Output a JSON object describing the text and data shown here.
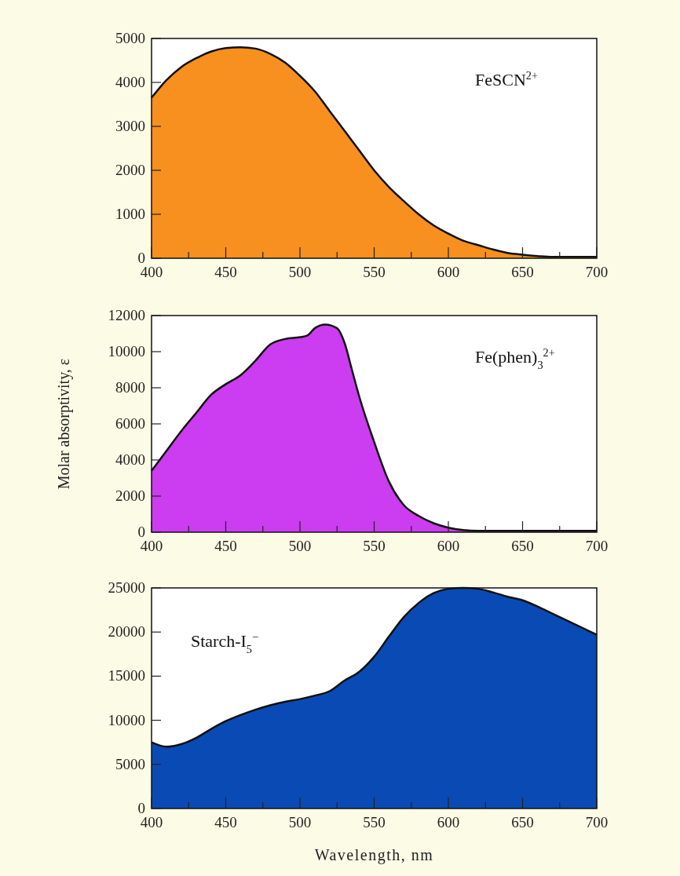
{
  "chart_data": [
    {
      "type": "area",
      "x": [
        400,
        410,
        420,
        430,
        440,
        450,
        460,
        470,
        480,
        490,
        500,
        510,
        520,
        530,
        540,
        550,
        560,
        570,
        580,
        590,
        600,
        610,
        620,
        630,
        640,
        650,
        660,
        670,
        680,
        690,
        700
      ],
      "series": [
        {
          "name": "FeSCN$^{2+}$",
          "color": "#f7901e",
          "values": [
            3650,
            4050,
            4350,
            4550,
            4700,
            4780,
            4800,
            4770,
            4650,
            4450,
            4150,
            3800,
            3350,
            2900,
            2450,
            2000,
            1620,
            1300,
            1000,
            750,
            560,
            400,
            300,
            200,
            120,
            80,
            50,
            30,
            30,
            30,
            30
          ]
        }
      ],
      "legend": "top right",
      "xlim": [
        400,
        700
      ],
      "xticks": [
        400,
        {
          "value": 425,
          "label": null
        },
        450,
        {
          "value": 475,
          "label": null
        },
        500,
        {
          "value": 525,
          "label": null
        },
        550,
        {
          "value": 575,
          "label": null
        },
        600,
        {
          "value": 625,
          "label": null
        },
        650,
        {
          "value": 675,
          "label": null
        },
        700
      ],
      "ylim": [
        0,
        5000
      ],
      "yticks": [
        0,
        1000,
        2000,
        3000,
        4000,
        5000
      ]
    },
    {
      "type": "area",
      "ylabel": "Molar absorptivity, ε",
      "x": [
        400,
        410,
        420,
        430,
        440,
        450,
        460,
        470,
        480,
        490,
        500,
        505,
        510,
        517,
        525,
        530,
        535,
        540,
        550,
        560,
        570,
        580,
        590,
        600,
        610,
        620,
        650,
        700
      ],
      "series": [
        {
          "name": "Fe(phen)$_{3}$$^{2+}$",
          "color": "#cc3cf0",
          "values": [
            3400,
            4500,
            5600,
            6600,
            7600,
            8200,
            8700,
            9500,
            10400,
            10700,
            10800,
            10900,
            11300,
            11500,
            11300,
            10500,
            9000,
            7500,
            5000,
            2800,
            1500,
            900,
            500,
            250,
            120,
            80,
            80,
            80
          ]
        }
      ],
      "legend": "top right",
      "xlim": [
        400,
        700
      ],
      "xticks": [
        400,
        {
          "value": 425,
          "label": null
        },
        450,
        {
          "value": 475,
          "label": null
        },
        500,
        {
          "value": 525,
          "label": null
        },
        550,
        {
          "value": 575,
          "label": null
        },
        600,
        {
          "value": 625,
          "label": null
        },
        650,
        {
          "value": 675,
          "label": null
        },
        700
      ],
      "ylim": [
        0,
        12000
      ],
      "yticks": [
        0,
        2000,
        4000,
        6000,
        8000,
        10000,
        12000
      ]
    },
    {
      "type": "area",
      "xlabel": "Wavelength, nm",
      "x": [
        400,
        410,
        420,
        430,
        440,
        450,
        460,
        470,
        480,
        490,
        500,
        510,
        520,
        530,
        540,
        550,
        560,
        570,
        580,
        590,
        600,
        610,
        620,
        630,
        640,
        650,
        660,
        670,
        680,
        690,
        700
      ],
      "series": [
        {
          "name": "Starch-I$_{5}$$^{−}$",
          "color": "#0a4ab5",
          "values": [
            7500,
            7000,
            7300,
            8000,
            9000,
            9900,
            10600,
            11200,
            11700,
            12100,
            12400,
            12800,
            13300,
            14500,
            15500,
            17200,
            19500,
            21700,
            23300,
            24400,
            24900,
            25000,
            24900,
            24500,
            24000,
            23600,
            22900,
            22100,
            21300,
            20500,
            19700
          ]
        }
      ],
      "legend": "top left",
      "xlim": [
        400,
        700
      ],
      "xticks": [
        400,
        {
          "value": 425,
          "label": null
        },
        450,
        {
          "value": 475,
          "label": null
        },
        500,
        {
          "value": 525,
          "label": null
        },
        550,
        {
          "value": 575,
          "label": null
        },
        600,
        {
          "value": 625,
          "label": null
        },
        650,
        {
          "value": 675,
          "label": null
        },
        700
      ],
      "ylim": [
        0,
        25000
      ],
      "yticks": [
        0,
        5000,
        10000,
        15000,
        20000,
        25000
      ]
    }
  ]
}
